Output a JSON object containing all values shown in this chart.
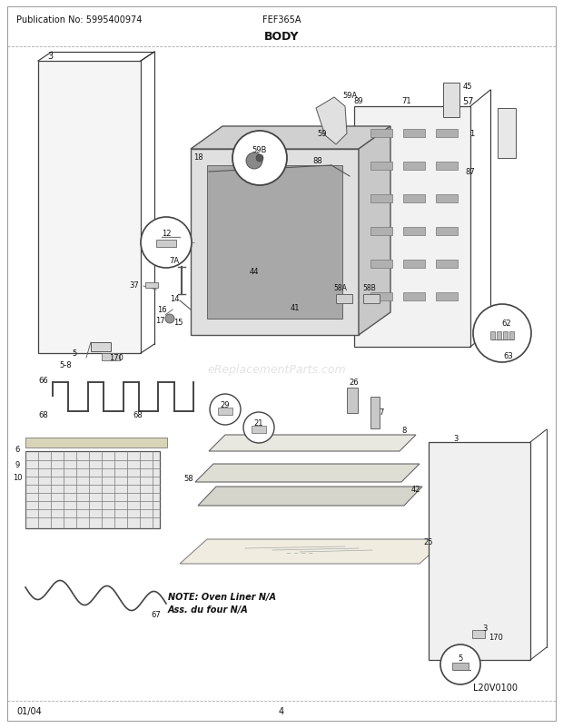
{
  "title": "BODY",
  "pub_no": "Publication No: 5995400974",
  "model": "FEF365A",
  "date": "01/04",
  "page": "4",
  "logo": "L20V0100",
  "watermark": "eReplacementParts.com",
  "note_line1": "NOTE: Oven Liner N/A",
  "note_line2": "Ass. du four N/A",
  "bg_color": "#ffffff",
  "border_color": "#888888",
  "text_color": "#222222",
  "title_color": "#000000",
  "figsize": [
    6.2,
    8.03
  ],
  "dpi": 100
}
